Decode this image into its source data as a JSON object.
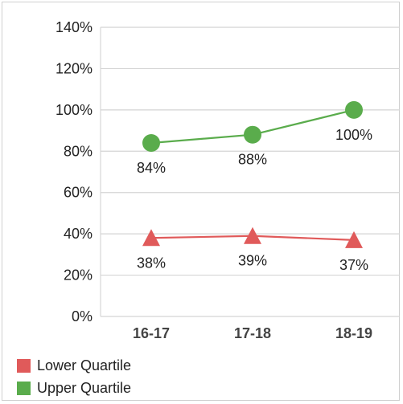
{
  "chart_data": {
    "type": "line",
    "categories": [
      "16-17",
      "17-18",
      "18-19"
    ],
    "series": [
      {
        "name": "Lower Quartile",
        "values": [
          38,
          39,
          37
        ],
        "labels": [
          "38%",
          "39%",
          "37%"
        ],
        "color": "#e05a5a",
        "marker": "triangle"
      },
      {
        "name": "Upper Quartile",
        "values": [
          84,
          88,
          100
        ],
        "labels": [
          "84%",
          "88%",
          "100%"
        ],
        "color": "#5aac4c",
        "marker": "circle"
      }
    ],
    "y_ticks": [
      "0%",
      "20%",
      "40%",
      "60%",
      "80%",
      "100%",
      "120%",
      "140%"
    ],
    "ylim": [
      0,
      140
    ],
    "grid": true,
    "legend_position": "bottom-left",
    "title": "",
    "xlabel": "",
    "ylabel": ""
  }
}
